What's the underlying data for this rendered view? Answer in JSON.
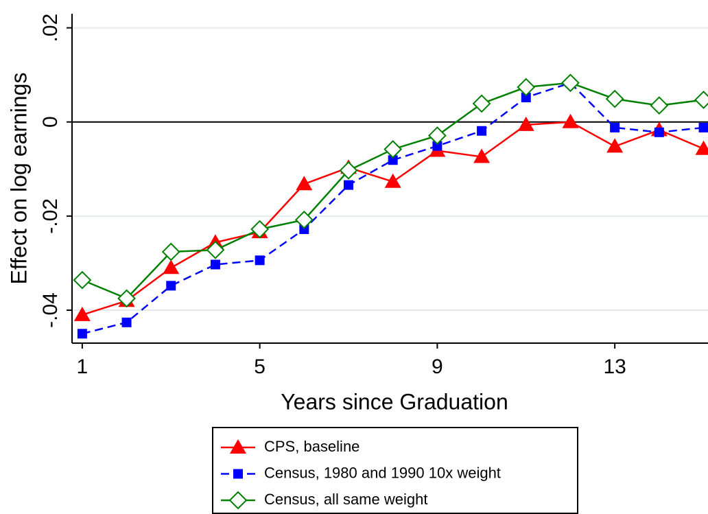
{
  "chart_data": {
    "type": "line",
    "ylabel": "Effect on log earnings",
    "xlabel": "Years since Graduation",
    "x": [
      1,
      2,
      3,
      4,
      5,
      6,
      7,
      8,
      9,
      10,
      11,
      12,
      13,
      14,
      15
    ],
    "xlim": [
      0.77,
      15.1
    ],
    "xticks": [
      1,
      5,
      9,
      13
    ],
    "ylim": [
      -0.047,
      0.023
    ],
    "yticks": [
      {
        "value": 0.02,
        "label": ".02"
      },
      0,
      {
        "value": -0.02,
        "label": "-.02"
      },
      {
        "value": -0.04,
        "label": "-.04"
      }
    ],
    "grid": true,
    "legend": "bottom",
    "series": [
      {
        "name": "CPS, baseline",
        "color": "#ff0000",
        "marker": "triangle",
        "line": "solid",
        "values": [
          -0.041,
          -0.038,
          -0.031,
          -0.0256,
          -0.0234,
          -0.0132,
          -0.0097,
          -0.0127,
          -0.0061,
          -0.0074,
          -0.0006,
          0.0,
          -0.0052,
          -0.0017,
          -0.0057
        ]
      },
      {
        "name": "Census, 1980 and 1990 10x weight",
        "color": "#0000ff",
        "marker": "square",
        "line": "dashed",
        "values": [
          -0.045,
          -0.0426,
          -0.0348,
          -0.0303,
          -0.0294,
          -0.0228,
          -0.0134,
          -0.0081,
          -0.0051,
          -0.0019,
          0.0052,
          0.0083,
          -0.0012,
          -0.0022,
          -0.0012
        ]
      },
      {
        "name": "Census, all same weight",
        "color": "#008000",
        "marker": "diamond",
        "line": "solid",
        "values": [
          -0.0336,
          -0.0375,
          -0.0276,
          -0.0272,
          -0.0228,
          -0.0208,
          -0.0103,
          -0.0058,
          -0.0029,
          0.0039,
          0.0074,
          0.0083,
          0.0049,
          0.0035,
          0.0047
        ]
      }
    ]
  }
}
